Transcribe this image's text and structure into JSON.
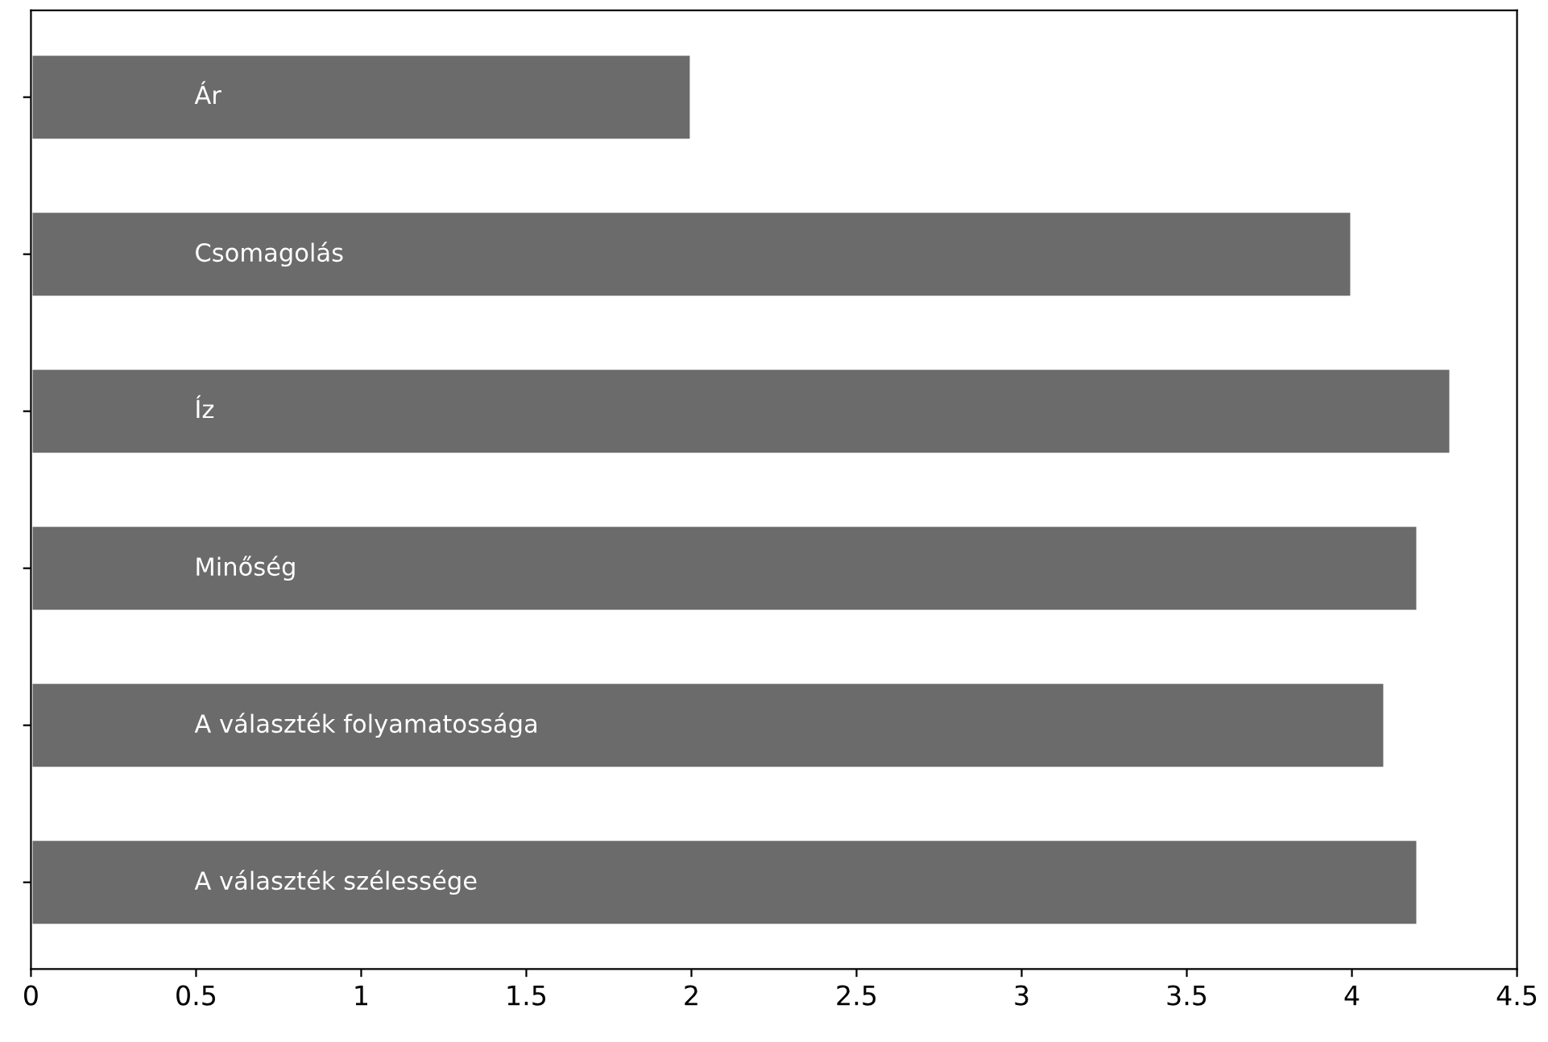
{
  "chart_data": {
    "type": "bar",
    "orientation": "horizontal",
    "categories": [
      "Ár",
      "Csomagolás",
      "Íz",
      "Minőség",
      "A választék folyamatossága",
      "A választék szélessége"
    ],
    "values": [
      2.0,
      4.0,
      4.3,
      4.2,
      4.1,
      4.2
    ],
    "color": "#6b6b6b",
    "xlim": [
      0,
      4.5
    ],
    "xticks": [
      0,
      0.5,
      1,
      1.5,
      2,
      2.5,
      3,
      3.5,
      4,
      4.5
    ],
    "tick_labels": "x",
    "grid": false
  }
}
